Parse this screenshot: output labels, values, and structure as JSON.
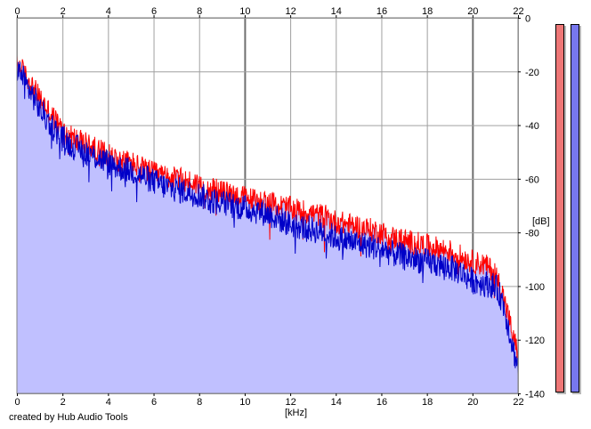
{
  "credit_text": "created by Hub Audio Tools",
  "colors": {
    "background": "#ffffff",
    "fill": "#c0c0ff",
    "grid": "#a0a0a0",
    "grid_major": "#707070",
    "series_left": "#ff0000",
    "series_right": "#0000c8",
    "meter_left": "#ee7777",
    "meter_right": "#7777ee"
  },
  "meters": {
    "left_level": 1.0,
    "right_level": 1.0
  },
  "chart_data": {
    "type": "area",
    "title": "",
    "xlabel": "[kHz]",
    "ylabel": "[dB]",
    "xlim": [
      0,
      22
    ],
    "ylim": [
      -140,
      0
    ],
    "x_ticks": [
      "0",
      "2",
      "4",
      "6",
      "8",
      "10",
      "12",
      "14",
      "16",
      "18",
      "20",
      "22"
    ],
    "y_ticks": [
      "0",
      "-20",
      "-40",
      "-60",
      "-80",
      "-100",
      "-120",
      "-140"
    ],
    "grid": true,
    "series": [
      {
        "color": "#ff0000",
        "x": [
          0.0,
          0.2,
          0.4,
          0.7,
          1.0,
          1.5,
          2.0,
          2.5,
          3.0,
          3.5,
          4.0,
          4.5,
          5.0,
          5.5,
          6.0,
          6.5,
          7.0,
          7.5,
          8.0,
          8.5,
          9.0,
          9.5,
          10.0,
          10.5,
          11.0,
          11.5,
          12.0,
          12.5,
          13.0,
          13.5,
          14.0,
          14.5,
          15.0,
          15.5,
          16.0,
          16.5,
          17.0,
          17.5,
          18.0,
          18.5,
          19.0,
          19.5,
          20.0,
          20.5,
          21.0,
          21.3,
          21.6,
          21.8,
          22.0
        ],
        "y": [
          -18,
          -19,
          -22,
          -26,
          -30,
          -36,
          -42,
          -45,
          -47,
          -49,
          -51,
          -53,
          -54,
          -56,
          -58,
          -59,
          -60,
          -61,
          -62,
          -64,
          -65,
          -66,
          -67,
          -68,
          -69,
          -70,
          -71,
          -72,
          -73,
          -74,
          -76,
          -77,
          -78,
          -79,
          -80,
          -82,
          -83,
          -84,
          -85,
          -86,
          -87,
          -89,
          -91,
          -92,
          -95,
          -102,
          -112,
          -120,
          -124
        ]
      },
      {
        "color": "#0000c8",
        "x": [
          0.0,
          0.2,
          0.4,
          0.7,
          1.0,
          1.5,
          2.0,
          2.5,
          3.0,
          3.5,
          4.0,
          4.5,
          5.0,
          5.5,
          6.0,
          6.5,
          7.0,
          7.5,
          8.0,
          8.5,
          9.0,
          9.5,
          10.0,
          10.5,
          11.0,
          11.5,
          12.0,
          12.5,
          13.0,
          13.5,
          14.0,
          14.5,
          15.0,
          15.5,
          16.0,
          16.5,
          17.0,
          17.5,
          18.0,
          18.5,
          19.0,
          19.5,
          20.0,
          20.5,
          21.0,
          21.3,
          21.6,
          21.8,
          22.0
        ],
        "y": [
          -19,
          -21,
          -25,
          -29,
          -34,
          -40,
          -45,
          -48,
          -50,
          -52,
          -54,
          -56,
          -57,
          -59,
          -61,
          -63,
          -64,
          -65,
          -66,
          -68,
          -69,
          -70,
          -71,
          -72,
          -73,
          -75,
          -77,
          -78,
          -79,
          -80,
          -82,
          -83,
          -84,
          -85,
          -86,
          -88,
          -89,
          -90,
          -91,
          -92,
          -93,
          -95,
          -98,
          -99,
          -100,
          -105,
          -116,
          -124,
          -130
        ]
      }
    ]
  }
}
